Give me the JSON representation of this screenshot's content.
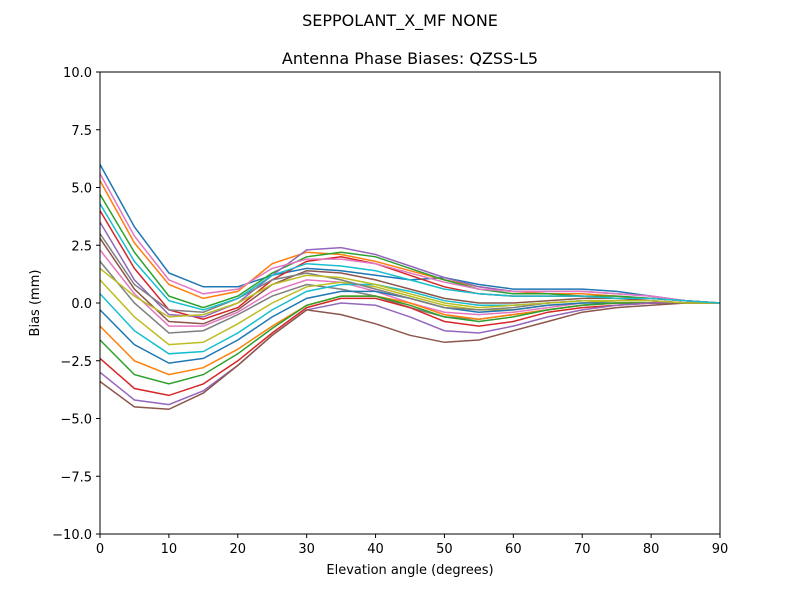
{
  "chart_data": {
    "type": "line",
    "suptitle": "SEPPOLANT_X_MF  NONE",
    "title": "Antenna Phase Biases: QZSS-L5",
    "xlabel": "Elevation angle (degrees)",
    "ylabel": "Bias (mm)",
    "xlim": [
      0,
      90
    ],
    "ylim": [
      -10,
      10
    ],
    "xticks": [
      0,
      10,
      20,
      30,
      40,
      50,
      60,
      70,
      80,
      90
    ],
    "xtick_labels": [
      "0",
      "10",
      "20",
      "30",
      "40",
      "50",
      "60",
      "70",
      "80",
      "90"
    ],
    "yticks": [
      -10,
      -7.5,
      -5,
      -2.5,
      0,
      2.5,
      5,
      7.5,
      10
    ],
    "ytick_labels": [
      "−10.0",
      "−7.5",
      "−5.0",
      "−2.5",
      "0.0",
      "2.5",
      "5.0",
      "7.5",
      "10.0"
    ],
    "grid": false,
    "x": [
      0,
      5,
      10,
      15,
      20,
      25,
      30,
      35,
      40,
      45,
      50,
      55,
      60,
      65,
      70,
      75,
      80,
      85,
      90
    ],
    "colors": [
      "#1f77b4",
      "#ff7f0e",
      "#2ca02c",
      "#d62728",
      "#9467bd",
      "#8c564b",
      "#e377c2",
      "#7f7f7f",
      "#bcbd22",
      "#17becf"
    ],
    "series": [
      {
        "values": [
          6.0,
          3.3,
          1.3,
          0.7,
          0.7,
          1.2,
          1.5,
          1.4,
          1.2,
          1.0,
          1.1,
          0.8,
          0.6,
          0.6,
          0.6,
          0.5,
          0.3,
          0.1,
          0
        ]
      },
      {
        "values": [
          5.3,
          2.6,
          0.8,
          0.2,
          0.5,
          1.7,
          2.2,
          2.1,
          1.8,
          1.4,
          1.0,
          0.7,
          0.5,
          0.4,
          0.4,
          0.3,
          0.2,
          0.1,
          0
        ]
      },
      {
        "values": [
          4.7,
          2.2,
          0.3,
          -0.2,
          0.3,
          1.3,
          2.0,
          2.2,
          2.0,
          1.5,
          1.0,
          0.6,
          0.4,
          0.4,
          0.3,
          0.3,
          0.2,
          0.1,
          0
        ]
      },
      {
        "values": [
          4.0,
          1.5,
          -0.3,
          -0.7,
          -0.2,
          1.0,
          1.8,
          2.0,
          1.7,
          1.2,
          0.7,
          0.4,
          0.3,
          0.3,
          0.3,
          0.2,
          0.2,
          0.1,
          0
        ]
      },
      {
        "values": [
          3.5,
          1.0,
          -0.5,
          -0.6,
          0.0,
          1.2,
          2.3,
          2.4,
          2.1,
          1.6,
          1.1,
          0.7,
          0.5,
          0.5,
          0.5,
          0.4,
          0.3,
          0.1,
          0
        ]
      },
      {
        "values": [
          2.8,
          0.6,
          -0.8,
          -0.9,
          -0.3,
          0.8,
          1.4,
          1.3,
          1.0,
          0.6,
          0.2,
          0.0,
          0.0,
          0.1,
          0.2,
          0.2,
          0.1,
          0.0,
          0
        ]
      },
      {
        "values": [
          2.3,
          0.4,
          -1.0,
          -1.0,
          -0.4,
          0.5,
          1.0,
          0.9,
          0.5,
          0.0,
          -0.4,
          -0.5,
          -0.4,
          -0.2,
          0.0,
          0.1,
          0.1,
          0.0,
          0
        ]
      },
      {
        "values": [
          1.8,
          0.0,
          -1.3,
          -1.2,
          -0.5,
          0.3,
          0.8,
          0.6,
          0.3,
          -0.2,
          -0.6,
          -0.7,
          -0.5,
          -0.3,
          -0.1,
          0.0,
          0.0,
          0.0,
          0
        ]
      },
      {
        "values": [
          1.0,
          -0.6,
          -1.8,
          -1.7,
          -0.9,
          0.0,
          0.7,
          0.9,
          0.7,
          0.3,
          -0.1,
          -0.3,
          -0.3,
          -0.1,
          0.0,
          0.1,
          0.1,
          0.0,
          0
        ]
      },
      {
        "values": [
          0.4,
          -1.2,
          -2.2,
          -2.1,
          -1.3,
          -0.3,
          0.5,
          0.8,
          0.8,
          0.5,
          0.1,
          -0.1,
          -0.1,
          0.0,
          0.1,
          0.1,
          0.1,
          0.0,
          0
        ]
      },
      {
        "values": [
          -0.3,
          -1.8,
          -2.6,
          -2.4,
          -1.6,
          -0.6,
          0.2,
          0.5,
          0.5,
          0.2,
          -0.2,
          -0.4,
          -0.3,
          -0.1,
          0.0,
          0.0,
          0.0,
          0.0,
          0
        ]
      },
      {
        "values": [
          -1.0,
          -2.5,
          -3.1,
          -2.8,
          -2.0,
          -1.0,
          -0.1,
          0.3,
          0.3,
          0.0,
          -0.5,
          -0.7,
          -0.5,
          -0.3,
          -0.1,
          0.0,
          0.0,
          0.0,
          0
        ]
      },
      {
        "values": [
          -1.6,
          -3.1,
          -3.5,
          -3.1,
          -2.2,
          -1.1,
          -0.1,
          0.3,
          0.3,
          -0.1,
          -0.6,
          -0.8,
          -0.6,
          -0.3,
          -0.1,
          0.0,
          0.0,
          0.0,
          0
        ]
      },
      {
        "values": [
          -2.4,
          -3.7,
          -4.0,
          -3.5,
          -2.5,
          -1.3,
          -0.2,
          0.2,
          0.2,
          -0.2,
          -0.8,
          -1.0,
          -0.8,
          -0.4,
          -0.2,
          -0.1,
          0.0,
          0.0,
          0
        ]
      },
      {
        "values": [
          -3.0,
          -4.2,
          -4.4,
          -3.8,
          -2.7,
          -1.4,
          -0.3,
          0.0,
          -0.1,
          -0.6,
          -1.2,
          -1.3,
          -1.0,
          -0.6,
          -0.3,
          -0.1,
          0.0,
          0.0,
          0
        ]
      },
      {
        "values": [
          -3.4,
          -4.5,
          -4.6,
          -3.9,
          -2.7,
          -1.4,
          -0.3,
          -0.5,
          -0.9,
          -1.4,
          -1.7,
          -1.6,
          -1.2,
          -0.8,
          -0.4,
          -0.2,
          -0.1,
          0.0,
          0
        ]
      },
      {
        "values": [
          5.6,
          2.9,
          1.0,
          0.4,
          0.6,
          1.5,
          1.9,
          1.9,
          1.7,
          1.3,
          0.9,
          0.6,
          0.5,
          0.5,
          0.5,
          0.4,
          0.3,
          0.1,
          0
        ]
      },
      {
        "values": [
          3.0,
          0.8,
          -0.3,
          -0.4,
          0.2,
          1.0,
          1.3,
          1.0,
          0.6,
          0.2,
          -0.2,
          -0.3,
          -0.2,
          0.0,
          0.1,
          0.1,
          0.1,
          0.0,
          0
        ]
      },
      {
        "values": [
          1.5,
          0.3,
          -0.6,
          -0.5,
          0.0,
          0.8,
          1.2,
          1.1,
          0.8,
          0.4,
          0.0,
          -0.2,
          -0.1,
          0.0,
          0.1,
          0.1,
          0.1,
          0.0,
          0
        ]
      },
      {
        "values": [
          4.3,
          1.8,
          0.1,
          -0.3,
          0.2,
          1.2,
          1.7,
          1.6,
          1.4,
          1.0,
          0.6,
          0.4,
          0.3,
          0.3,
          0.3,
          0.2,
          0.2,
          0.1,
          0
        ]
      }
    ]
  }
}
